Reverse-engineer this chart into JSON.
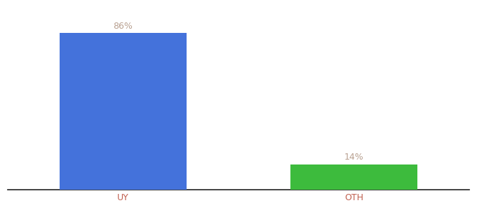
{
  "categories": [
    "UY",
    "OTH"
  ],
  "values": [
    86,
    14
  ],
  "bar_colors": [
    "#4472db",
    "#3dbb3d"
  ],
  "label_color": "#b8a090",
  "xlabel_color": "#c06050",
  "background_color": "#ffffff",
  "ylim": [
    0,
    100
  ],
  "bar_width": 0.55,
  "label_fontsize": 9,
  "xlabel_fontsize": 9,
  "value_format": "{}%",
  "xlim": [
    -0.5,
    1.5
  ]
}
